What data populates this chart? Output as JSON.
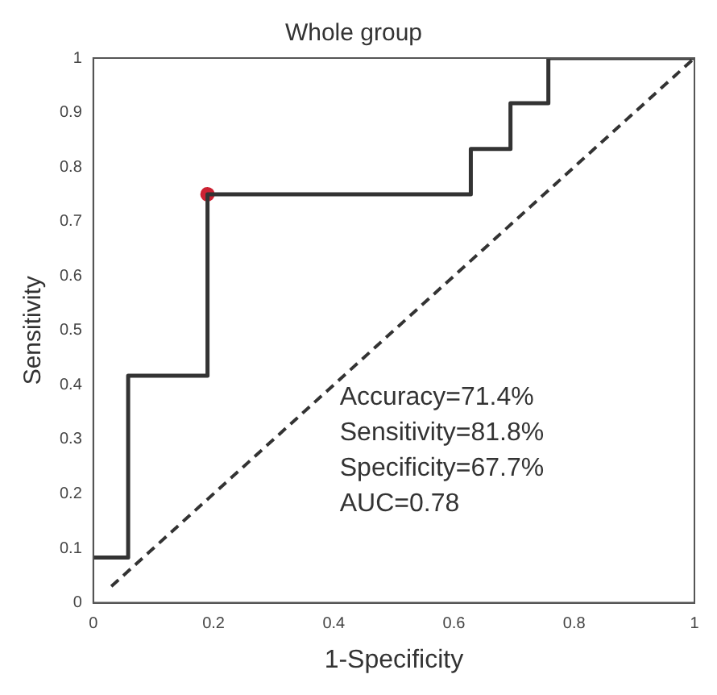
{
  "chart_data": {
    "type": "step",
    "title": "Whole group",
    "xlabel": "1-Specificity",
    "ylabel": "Sensitivity",
    "series": [
      {
        "color": "#333333",
        "marker": "none",
        "x": [
          0,
          0.058,
          0.19,
          0.628,
          0.694,
          0.757,
          1
        ],
        "values": [
          0.083,
          0.417,
          0.75,
          0.833,
          0.917,
          1,
          1
        ]
      },
      {
        "type": "line",
        "color": "#333333",
        "marker": "none",
        "line_style": "dashed",
        "x": [
          0.03,
          1
        ],
        "values": [
          0.03,
          1
        ]
      },
      {
        "type": "scatter",
        "color": "#cc2233",
        "marker": "circle",
        "x": [
          0.19
        ],
        "values": [
          0.75
        ]
      }
    ],
    "xlim": [
      0,
      1
    ],
    "xticks": [
      0,
      0.2,
      0.4,
      0.6,
      0.8,
      1
    ],
    "ylim": [
      0,
      1
    ],
    "yticks": [
      0,
      0.1,
      0.2,
      0.3,
      0.4,
      0.5,
      0.6,
      0.7,
      0.8,
      0.9,
      1
    ],
    "grid": false,
    "legend": false,
    "annotations": [
      "Accuracy=71.4%",
      "Sensitivity=81.8%",
      "Specificity=67.7%",
      "AUC=0.78"
    ]
  }
}
